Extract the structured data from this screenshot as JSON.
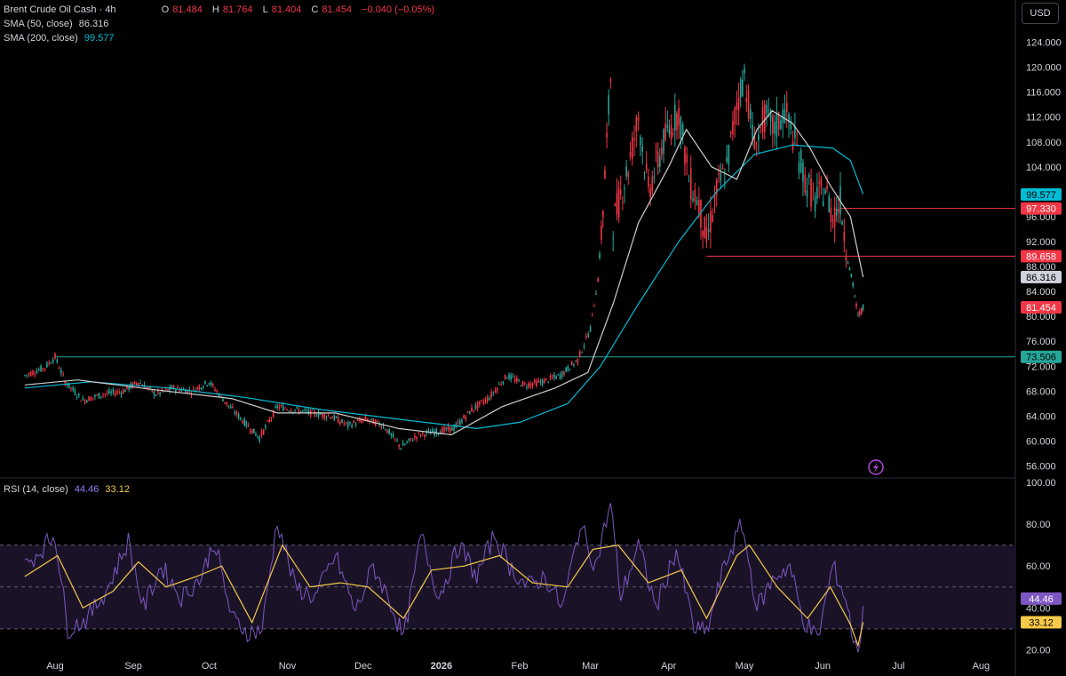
{
  "header": {
    "symbol": "Brent Crude Oil Cash · 4h",
    "ohlc": {
      "o_label": "O",
      "o": "81.484",
      "h_label": "H",
      "h": "81.764",
      "l_label": "L",
      "l": "81.404",
      "c_label": "C",
      "c": "81.454",
      "change": "−0.040 (−0.05%)"
    },
    "sma50_label": "SMA (50, close)",
    "sma50_value": "86.316",
    "sma200_label": "SMA (200, close)",
    "sma200_value": "99.577",
    "currency": "USD"
  },
  "rsi_legend": {
    "label": "RSI (14, close)",
    "value": "44.46",
    "ma_value": "33.12"
  },
  "colors": {
    "up": "#26a69a",
    "down": "#f23645",
    "sma50": "#cfcfcf",
    "sma200": "#00bcd4",
    "rsi": "#7e57c2",
    "rsi_ma": "#f7c948",
    "level_green": "#26a69a",
    "level_red": "#f23645",
    "axis_text": "#d1d4dc",
    "grid": "#1e222d"
  },
  "icons": {
    "alert": "lightning-bolt-icon"
  },
  "chart_data": [
    {
      "type": "candlestick",
      "title": "Brent Crude Oil Cash · 4h",
      "x_ticks": [
        "Aug",
        "Sep",
        "Oct",
        "Nov",
        "Dec",
        "2026",
        "Feb",
        "Mar",
        "Apr",
        "May",
        "Jun",
        "Jul",
        "Aug"
      ],
      "y_ticks": [
        "124.000",
        "120.000",
        "116.000",
        "112.000",
        "108.000",
        "104.000",
        "100.000",
        "96.000",
        "92.000",
        "88.000",
        "84.000",
        "80.000",
        "76.000",
        "72.000",
        "68.000",
        "64.000",
        "60.000",
        "56.000"
      ],
      "ylim": [
        54.5,
        126.5
      ],
      "price_path": [
        [
          "Jul 20",
          70.5
        ],
        [
          "Jul 28",
          71.8
        ],
        [
          "Aug 1",
          73.5
        ],
        [
          "Aug 5",
          69.5
        ],
        [
          "Aug 12",
          66.5
        ],
        [
          "Aug 20",
          67.5
        ],
        [
          "Aug 28",
          68.0
        ],
        [
          "Sep 3",
          69.5
        ],
        [
          "Sep 10",
          67.5
        ],
        [
          "Sep 17",
          68.5
        ],
        [
          "Sep 24",
          68.0
        ],
        [
          "Oct 1",
          69.5
        ],
        [
          "Oct 8",
          66.0
        ],
        [
          "Oct 15",
          63.0
        ],
        [
          "Oct 21",
          60.5
        ],
        [
          "Oct 28",
          65.5
        ],
        [
          "Nov 4",
          65.0
        ],
        [
          "Nov 11",
          64.5
        ],
        [
          "Nov 18",
          64.0
        ],
        [
          "Nov 25",
          62.5
        ],
        [
          "Dec 2",
          63.5
        ],
        [
          "Dec 9",
          62.5
        ],
        [
          "Dec 16",
          59.0
        ],
        [
          "Dec 23",
          61.0
        ],
        [
          "Dec 30",
          61.5
        ],
        [
          "Jan 6",
          62.0
        ],
        [
          "Jan 13",
          65.0
        ],
        [
          "Jan 20",
          67.0
        ],
        [
          "Jan 27",
          70.5
        ],
        [
          "Feb 3",
          69.0
        ],
        [
          "Feb 10",
          69.5
        ],
        [
          "Feb 17",
          70.5
        ],
        [
          "Feb 24",
          73.0
        ],
        [
          "Mar 1",
          78.0
        ],
        [
          "Mar 4",
          86.0
        ],
        [
          "Mar 6",
          97.0
        ],
        [
          "Mar 9",
          118.5
        ],
        [
          "Mar 10",
          95.0
        ],
        [
          "Mar 16",
          104.0
        ],
        [
          "Mar 20",
          112.0
        ],
        [
          "Mar 24",
          100.0
        ],
        [
          "Mar 30",
          108.0
        ],
        [
          "Apr 5",
          113.0
        ],
        [
          "Apr 9",
          102.0
        ],
        [
          "Apr 13",
          98.0
        ],
        [
          "Apr 16",
          92.0
        ],
        [
          "Apr 20",
          100.0
        ],
        [
          "Apr 24",
          104.0
        ],
        [
          "Apr 28",
          114.0
        ],
        [
          "May 1",
          119.0
        ],
        [
          "May 5",
          107.0
        ],
        [
          "May 9",
          112.0
        ],
        [
          "May 13",
          110.0
        ],
        [
          "May 17",
          113.0
        ],
        [
          "May 21",
          108.0
        ],
        [
          "May 25",
          102.0
        ],
        [
          "May 29",
          98.5
        ],
        [
          "Jun 2",
          100.5
        ],
        [
          "Jun 5",
          96.0
        ],
        [
          "Jun 8",
          98.5
        ],
        [
          "Jun 11",
          89.0
        ],
        [
          "Jun 13",
          85.0
        ],
        [
          "Jun 15",
          80.0
        ],
        [
          "Jun 17",
          81.45
        ]
      ],
      "sma50_path": [
        [
          "Jul 20",
          69.0
        ],
        [
          "Aug 10",
          69.8
        ],
        [
          "Sep 10",
          68.2
        ],
        [
          "Oct 10",
          66.8
        ],
        [
          "Oct 28",
          64.5
        ],
        [
          "Nov 20",
          64.5
        ],
        [
          "Dec 15",
          62.0
        ],
        [
          "Jan 5",
          61.0
        ],
        [
          "Jan 25",
          65.5
        ],
        [
          "Feb 15",
          68.5
        ],
        [
          "Feb 28",
          71.0
        ],
        [
          "Mar 10",
          82.0
        ],
        [
          "Mar 20",
          95.0
        ],
        [
          "Apr 1",
          104.0
        ],
        [
          "Apr 8",
          110.0
        ],
        [
          "Apr 18",
          104.0
        ],
        [
          "Apr 28",
          102.0
        ],
        [
          "May 6",
          110.0
        ],
        [
          "May 12",
          113.0
        ],
        [
          "May 20",
          111.0
        ],
        [
          "May 27",
          107.0
        ],
        [
          "Jun 4",
          101.0
        ],
        [
          "Jun 12",
          96.0
        ],
        [
          "Jun 17",
          86.3
        ]
      ],
      "sma200_path": [
        [
          "Jul 20",
          68.5
        ],
        [
          "Aug 15",
          69.5
        ],
        [
          "Sep 15",
          68.5
        ],
        [
          "Oct 15",
          67.0
        ],
        [
          "Nov 15",
          65.0
        ],
        [
          "Dec 15",
          63.5
        ],
        [
          "Jan 15",
          62.0
        ],
        [
          "Feb 1",
          63.0
        ],
        [
          "Feb 20",
          66.0
        ],
        [
          "Mar 5",
          72.0
        ],
        [
          "Mar 20",
          82.0
        ],
        [
          "Apr 5",
          92.0
        ],
        [
          "Apr 20",
          100.0
        ],
        [
          "May 5",
          106.0
        ],
        [
          "May 20",
          107.5
        ],
        [
          "Jun 5",
          107.0
        ],
        [
          "Jun 12",
          105.0
        ],
        [
          "Jun 17",
          99.6
        ]
      ],
      "horizontal_levels": [
        {
          "value": 73.506,
          "label": "73.506",
          "start": "Aug 1",
          "color": "#26a69a"
        },
        {
          "value": 89.658,
          "label": "89.658",
          "start": "Apr 16",
          "color": "#f23645"
        },
        {
          "value": 97.33,
          "label": "97.330",
          "start": "Jun 8",
          "color": "#f23645"
        }
      ],
      "price_labels": [
        {
          "value": 99.577,
          "label": "99.577",
          "bg": "#00bcd4",
          "fg": "#000000"
        },
        {
          "value": 97.33,
          "label": "97.330",
          "bg": "#f23645",
          "fg": "#ffffff"
        },
        {
          "value": 89.658,
          "label": "89.658",
          "bg": "#f23645",
          "fg": "#ffffff"
        },
        {
          "value": 86.316,
          "label": "86.316",
          "bg": "#d1d4dc",
          "fg": "#000000"
        },
        {
          "value": 81.454,
          "label": "81.454",
          "bg": "#f23645",
          "fg": "#ffffff"
        },
        {
          "value": 73.506,
          "label": "73.506",
          "bg": "#26a69a",
          "fg": "#000000"
        }
      ]
    },
    {
      "type": "line",
      "title": "RSI (14, close)",
      "y_ticks": [
        "100.00",
        "80.00",
        "60.00",
        "40.00",
        "20.00"
      ],
      "ylim": [
        10,
        100
      ],
      "band": [
        30,
        70
      ],
      "midline": 50,
      "series": [
        {
          "name": "RSI",
          "value": 44.46
        },
        {
          "name": "RSI MA",
          "value": 33.12
        }
      ],
      "rsi_path": [
        [
          "Jul 20",
          60
        ],
        [
          "Jul 28",
          70
        ],
        [
          "Aug 1",
          75
        ],
        [
          "Aug 6",
          30
        ],
        [
          "Aug 14",
          35
        ],
        [
          "Aug 22",
          50
        ],
        [
          "Aug 30",
          72
        ],
        [
          "Sep 5",
          40
        ],
        [
          "Sep 12",
          60
        ],
        [
          "Sep 20",
          45
        ],
        [
          "Sep 28",
          55
        ],
        [
          "Oct 3",
          72
        ],
        [
          "Oct 10",
          35
        ],
        [
          "Oct 17",
          28
        ],
        [
          "Oct 22",
          30
        ],
        [
          "Oct 28",
          82
        ],
        [
          "Nov 4",
          50
        ],
        [
          "Nov 12",
          45
        ],
        [
          "Nov 20",
          65
        ],
        [
          "Nov 28",
          38
        ],
        [
          "Dec 5",
          60
        ],
        [
          "Dec 12",
          42
        ],
        [
          "Dec 17",
          25
        ],
        [
          "Dec 24",
          75
        ],
        [
          "Dec 31",
          45
        ],
        [
          "Jan 8",
          70
        ],
        [
          "Jan 15",
          55
        ],
        [
          "Jan 22",
          75
        ],
        [
          "Jan 28",
          60
        ],
        [
          "Feb 4",
          50
        ],
        [
          "Feb 11",
          55
        ],
        [
          "Feb 18",
          40
        ],
        [
          "Feb 25",
          80
        ],
        [
          "Mar 3",
          60
        ],
        [
          "Mar 9",
          90
        ],
        [
          "Mar 13",
          45
        ],
        [
          "Mar 20",
          70
        ],
        [
          "Mar 27",
          40
        ],
        [
          "Apr 4",
          68
        ],
        [
          "Apr 11",
          30
        ],
        [
          "Apr 16",
          28
        ],
        [
          "Apr 23",
          60
        ],
        [
          "Apr 30",
          80
        ],
        [
          "May 6",
          40
        ],
        [
          "May 13",
          55
        ],
        [
          "May 19",
          60
        ],
        [
          "May 24",
          35
        ],
        [
          "May 30",
          25
        ],
        [
          "Jun 5",
          60
        ],
        [
          "Jun 10",
          45
        ],
        [
          "Jun 14",
          20
        ],
        [
          "Jun 16",
          25
        ],
        [
          "Jun 17",
          44.46
        ]
      ],
      "rsi_ma_path": [
        [
          "Jul 20",
          55
        ],
        [
          "Aug 2",
          65
        ],
        [
          "Aug 12",
          40
        ],
        [
          "Aug 24",
          48
        ],
        [
          "Sep 3",
          62
        ],
        [
          "Sep 14",
          50
        ],
        [
          "Sep 26",
          55
        ],
        [
          "Oct 6",
          60
        ],
        [
          "Oct 18",
          33
        ],
        [
          "Oct 30",
          70
        ],
        [
          "Nov 10",
          50
        ],
        [
          "Nov 22",
          52
        ],
        [
          "Dec 3",
          50
        ],
        [
          "Dec 17",
          35
        ],
        [
          "Dec 28",
          58
        ],
        [
          "Jan 10",
          60
        ],
        [
          "Jan 24",
          65
        ],
        [
          "Feb 6",
          52
        ],
        [
          "Feb 20",
          50
        ],
        [
          "Mar 2",
          68
        ],
        [
          "Mar 12",
          70
        ],
        [
          "Mar 24",
          52
        ],
        [
          "Apr 6",
          58
        ],
        [
          "Apr 16",
          35
        ],
        [
          "Apr 28",
          65
        ],
        [
          "May 3",
          70
        ],
        [
          "May 14",
          50
        ],
        [
          "May 26",
          35
        ],
        [
          "Jun 4",
          50
        ],
        [
          "Jun 12",
          32
        ],
        [
          "Jun 15",
          22
        ],
        [
          "Jun 17",
          33.12
        ]
      ]
    }
  ]
}
